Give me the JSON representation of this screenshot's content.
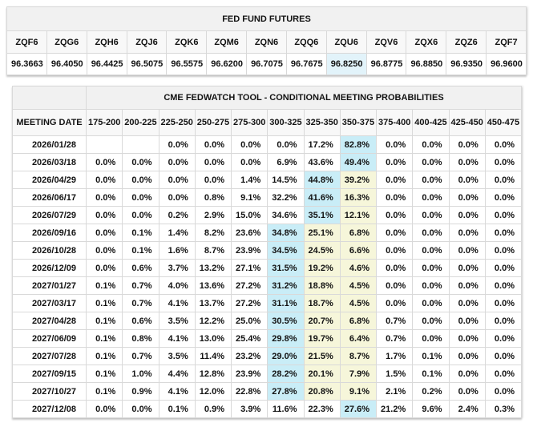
{
  "futures_table": {
    "title": "FED FUND FUTURES",
    "columns": [
      "ZQF6",
      "ZQG6",
      "ZQH6",
      "ZQJ6",
      "ZQK6",
      "ZQM6",
      "ZQN6",
      "ZQQ6",
      "ZQU6",
      "ZQV6",
      "ZQX6",
      "ZQZ6",
      "ZQF7"
    ],
    "values": [
      "96.3663",
      "96.4050",
      "96.4425",
      "96.5075",
      "96.5575",
      "96.6200",
      "96.7075",
      "96.7675",
      "96.8250",
      "96.8775",
      "96.8850",
      "96.9350",
      "96.9600"
    ],
    "highlighted_column": "ZQU6"
  },
  "fedwatch_table": {
    "title": "CME FEDWATCH TOOL - CONDITIONAL MEETING PROBABILITIES",
    "date_column_header": "MEETING DATE",
    "range_columns": [
      "175-200",
      "200-225",
      "225-250",
      "250-275",
      "275-300",
      "300-325",
      "325-350",
      "350-375",
      "375-400",
      "400-425",
      "425-450",
      "450-475"
    ],
    "rows": [
      {
        "date": "2026/01/28",
        "values": [
          "",
          "",
          "0.0%",
          "0.0%",
          "0.0%",
          "0.0%",
          "17.2%",
          "82.8%",
          "0.0%",
          "0.0%",
          "0.0%",
          "0.0%"
        ],
        "blue": [
          7
        ],
        "yellow": []
      },
      {
        "date": "2026/03/18",
        "values": [
          "0.0%",
          "0.0%",
          "0.0%",
          "0.0%",
          "0.0%",
          "6.9%",
          "43.6%",
          "49.4%",
          "0.0%",
          "0.0%",
          "0.0%",
          "0.0%"
        ],
        "blue": [
          7
        ],
        "yellow": []
      },
      {
        "date": "2026/04/29",
        "values": [
          "0.0%",
          "0.0%",
          "0.0%",
          "0.0%",
          "1.4%",
          "14.5%",
          "44.8%",
          "39.2%",
          "0.0%",
          "0.0%",
          "0.0%",
          "0.0%"
        ],
        "blue": [
          6
        ],
        "yellow": [
          7
        ]
      },
      {
        "date": "2026/06/17",
        "values": [
          "0.0%",
          "0.0%",
          "0.0%",
          "0.8%",
          "9.1%",
          "32.2%",
          "41.6%",
          "16.3%",
          "0.0%",
          "0.0%",
          "0.0%",
          "0.0%"
        ],
        "blue": [
          6
        ],
        "yellow": [
          7
        ]
      },
      {
        "date": "2026/07/29",
        "values": [
          "0.0%",
          "0.0%",
          "0.2%",
          "2.9%",
          "15.0%",
          "34.6%",
          "35.1%",
          "12.1%",
          "0.0%",
          "0.0%",
          "0.0%",
          "0.0%"
        ],
        "blue": [
          6
        ],
        "yellow": [
          7
        ]
      },
      {
        "date": "2026/09/16",
        "values": [
          "0.0%",
          "0.1%",
          "1.4%",
          "8.2%",
          "23.6%",
          "34.8%",
          "25.1%",
          "6.8%",
          "0.0%",
          "0.0%",
          "0.0%",
          "0.0%"
        ],
        "blue": [
          5
        ],
        "yellow": [
          6,
          7
        ]
      },
      {
        "date": "2026/10/28",
        "values": [
          "0.0%",
          "0.1%",
          "1.6%",
          "8.7%",
          "23.9%",
          "34.5%",
          "24.5%",
          "6.6%",
          "0.0%",
          "0.0%",
          "0.0%",
          "0.0%"
        ],
        "blue": [
          5
        ],
        "yellow": [
          6,
          7
        ]
      },
      {
        "date": "2026/12/09",
        "values": [
          "0.0%",
          "0.6%",
          "3.7%",
          "13.2%",
          "27.1%",
          "31.5%",
          "19.2%",
          "4.6%",
          "0.0%",
          "0.0%",
          "0.0%",
          "0.0%"
        ],
        "blue": [
          5
        ],
        "yellow": [
          6,
          7
        ]
      },
      {
        "date": "2027/01/27",
        "values": [
          "0.1%",
          "0.7%",
          "4.0%",
          "13.6%",
          "27.2%",
          "31.2%",
          "18.8%",
          "4.5%",
          "0.0%",
          "0.0%",
          "0.0%",
          "0.0%"
        ],
        "blue": [
          5
        ],
        "yellow": [
          6,
          7
        ]
      },
      {
        "date": "2027/03/17",
        "values": [
          "0.1%",
          "0.7%",
          "4.1%",
          "13.7%",
          "27.2%",
          "31.1%",
          "18.7%",
          "4.5%",
          "0.0%",
          "0.0%",
          "0.0%",
          "0.0%"
        ],
        "blue": [
          5
        ],
        "yellow": [
          6,
          7
        ]
      },
      {
        "date": "2027/04/28",
        "values": [
          "0.1%",
          "0.6%",
          "3.5%",
          "12.2%",
          "25.0%",
          "30.5%",
          "20.7%",
          "6.8%",
          "0.7%",
          "0.0%",
          "0.0%",
          "0.0%"
        ],
        "blue": [
          5
        ],
        "yellow": [
          6,
          7
        ]
      },
      {
        "date": "2027/06/09",
        "values": [
          "0.1%",
          "0.8%",
          "4.1%",
          "13.0%",
          "25.4%",
          "29.8%",
          "19.7%",
          "6.4%",
          "0.7%",
          "0.0%",
          "0.0%",
          "0.0%"
        ],
        "blue": [
          5
        ],
        "yellow": [
          6,
          7
        ]
      },
      {
        "date": "2027/07/28",
        "values": [
          "0.1%",
          "0.7%",
          "3.5%",
          "11.4%",
          "23.2%",
          "29.0%",
          "21.5%",
          "8.7%",
          "1.7%",
          "0.1%",
          "0.0%",
          "0.0%"
        ],
        "blue": [
          5
        ],
        "yellow": [
          6,
          7
        ]
      },
      {
        "date": "2027/09/15",
        "values": [
          "0.1%",
          "1.0%",
          "4.4%",
          "12.8%",
          "23.9%",
          "28.2%",
          "20.1%",
          "7.9%",
          "1.5%",
          "0.1%",
          "0.0%",
          "0.0%"
        ],
        "blue": [
          5
        ],
        "yellow": [
          6,
          7
        ]
      },
      {
        "date": "2027/10/27",
        "values": [
          "0.1%",
          "0.9%",
          "4.1%",
          "12.0%",
          "22.8%",
          "27.8%",
          "20.8%",
          "9.1%",
          "2.1%",
          "0.2%",
          "0.0%",
          "0.0%"
        ],
        "blue": [
          5
        ],
        "yellow": [
          6,
          7
        ]
      },
      {
        "date": "2027/12/08",
        "values": [
          "0.0%",
          "0.0%",
          "0.1%",
          "0.9%",
          "3.9%",
          "11.6%",
          "22.3%",
          "27.6%",
          "21.2%",
          "9.6%",
          "2.4%",
          "0.3%"
        ],
        "blue": [
          7
        ],
        "yellow": []
      }
    ]
  },
  "colors": {
    "highlight_blue": "#c9edf7",
    "highlight_yellow": "#f6f6da",
    "futures_highlight": "#e2f3fa",
    "header_background": "#f1f1f1"
  }
}
